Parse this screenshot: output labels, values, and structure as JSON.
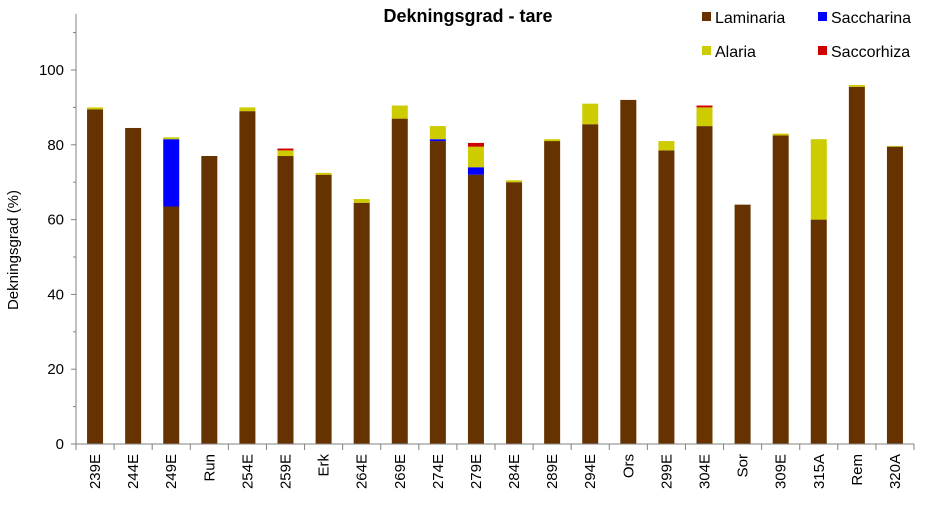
{
  "chart_data": {
    "type": "bar",
    "stacked": true,
    "title": "Dekningsgrad - tare",
    "ylabel": "Dekningsgrad  (%)",
    "xlabel": "",
    "ylim": [
      0,
      115
    ],
    "yticks": [
      0,
      20,
      40,
      60,
      80,
      100
    ],
    "grid": false,
    "legend_position": "top-right",
    "categories": [
      "239E",
      "244E",
      "249E",
      "Run",
      "254E",
      "259E",
      "Erk",
      "264E",
      "269E",
      "274E",
      "279E",
      "284E",
      "289E",
      "294E",
      "Ors",
      "299E",
      "304E",
      "Sor",
      "309E",
      "315A",
      "Rem",
      "320A"
    ],
    "series": [
      {
        "name": "Laminaria",
        "color": "#663300",
        "values": [
          89.5,
          84.5,
          63.5,
          77,
          89,
          77,
          72,
          64.5,
          87,
          81,
          72,
          70,
          81,
          85.5,
          92,
          78.5,
          85,
          64,
          82.5,
          60,
          95.5,
          79.5
        ]
      },
      {
        "name": "Saccharina",
        "color": "#0000ff",
        "values": [
          0,
          0,
          18,
          0,
          0,
          0,
          0,
          0,
          0,
          0.5,
          2,
          0,
          0,
          0,
          0,
          0,
          0,
          0,
          0,
          0,
          0,
          0
        ]
      },
      {
        "name": "Alaria",
        "color": "#cccc00",
        "values": [
          0.5,
          0,
          0.5,
          0,
          1,
          1.5,
          0.5,
          1,
          3.5,
          3.5,
          5.5,
          0.5,
          0.5,
          5.5,
          0,
          2.5,
          5,
          0,
          0.5,
          21.5,
          0.5,
          0.2
        ]
      },
      {
        "name": "Saccorhiza",
        "color": "#cc0000",
        "values": [
          0,
          0,
          0,
          0,
          0,
          0.5,
          0,
          0,
          0,
          0,
          1,
          0,
          0,
          0,
          0,
          0,
          0.5,
          0,
          0,
          0,
          0,
          0
        ]
      }
    ]
  }
}
